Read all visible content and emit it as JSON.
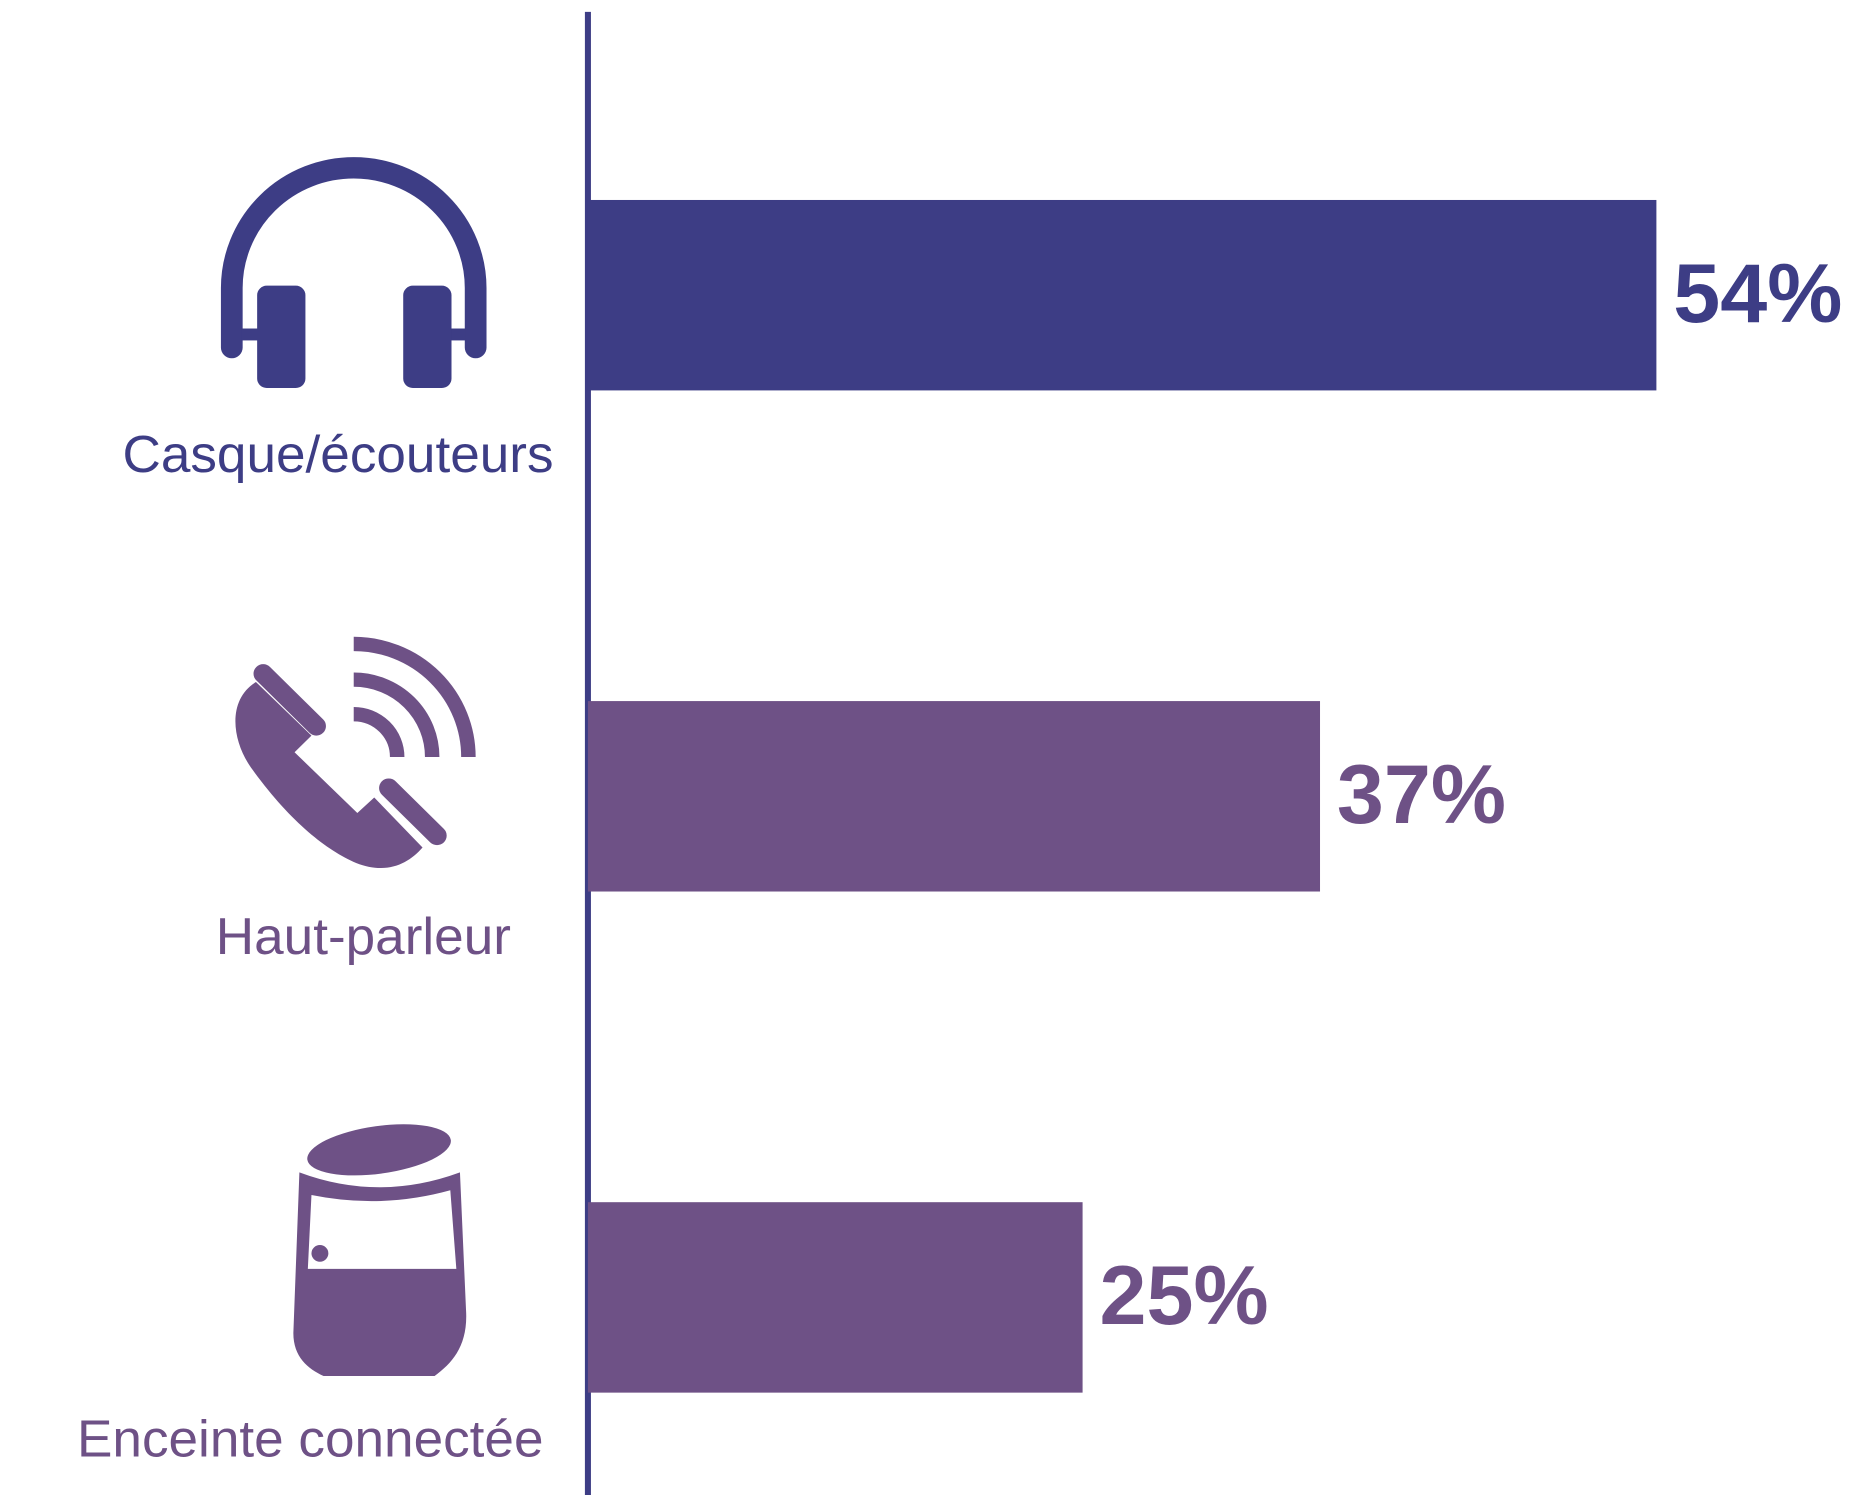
{
  "chart_data": {
    "type": "barh",
    "categories": [
      "Casque/écouteurs",
      "Haut-parleur",
      "Enceinte connectée"
    ],
    "values": [
      54,
      37,
      25
    ],
    "value_labels": [
      "54%",
      "37%",
      "25%"
    ],
    "colors": [
      "#3d3d85",
      "#6e5186",
      "#6e5186"
    ]
  }
}
